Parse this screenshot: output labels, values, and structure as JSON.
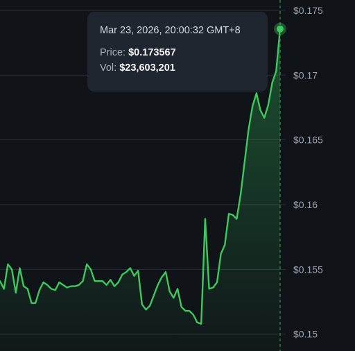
{
  "colors": {
    "background": "#101318",
    "line": "#3ec85e",
    "grid": "#2a3038",
    "crosshair": "#2f8f4a",
    "tooltip_bg": "#1f2630"
  },
  "tooltip": {
    "date": "Mar 23, 2026, 20:00:32 GMT+8",
    "price_label": "Price:",
    "price_value": "$0.173567",
    "vol_label": "Vol:",
    "vol_value": "$23,603,201"
  },
  "chart_data": {
    "type": "area",
    "title": "",
    "xlabel": "",
    "ylabel": "",
    "ylim": [
      0.1487,
      0.1758
    ],
    "y_ticks": [
      0.15,
      0.155,
      0.16,
      0.165,
      0.17,
      0.175
    ],
    "y_tick_labels": [
      "$0.15",
      "$0.155",
      "$0.16",
      "$0.165",
      "$0.17",
      "$0.175"
    ],
    "grid": true,
    "series": [
      {
        "values": [
          0.1541,
          0.1535,
          0.1554,
          0.155,
          0.1532,
          0.1551,
          0.1537,
          0.1535,
          0.1524,
          0.1524,
          0.1534,
          0.154,
          0.1538,
          0.1535,
          0.1534,
          0.154,
          0.1538,
          0.1536,
          0.1537,
          0.1537,
          0.1538,
          0.1541,
          0.1554,
          0.155,
          0.1541,
          0.1541,
          0.1541,
          0.1538,
          0.1542,
          0.1537,
          0.154,
          0.1546,
          0.1548,
          0.1551,
          0.1545,
          0.1549,
          0.1523,
          0.1519,
          0.1522,
          0.153,
          0.1538,
          0.1544,
          0.1548,
          0.1533,
          0.1528,
          0.1535,
          0.1521,
          0.1518,
          0.1518,
          0.1515,
          0.1509,
          0.1508,
          0.1589,
          0.1535,
          0.1536,
          0.154,
          0.1562,
          0.1569,
          0.1593,
          0.1592,
          0.1589,
          0.1608,
          0.1633,
          0.1658,
          0.1676,
          0.1686,
          0.1673,
          0.1667,
          0.1677,
          0.1694,
          0.1703,
          0.1736
        ]
      }
    ],
    "highlight_point": {
      "index": 71,
      "value": 0.173567
    }
  }
}
